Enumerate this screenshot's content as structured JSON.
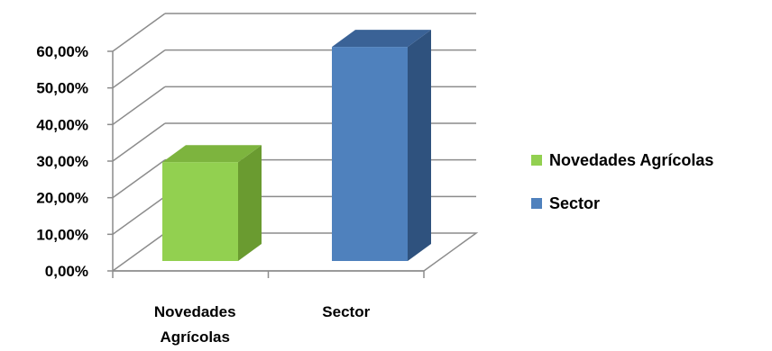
{
  "chart_data": {
    "type": "bar",
    "title": "",
    "xlabel": "",
    "ylabel": "",
    "categories": [
      "Novedades Agrícolas",
      "Sector"
    ],
    "category_label_lines": [
      [
        "Novedades",
        "Agrícolas"
      ],
      [
        "Sector"
      ]
    ],
    "values": [
      0.27,
      0.585
    ],
    "ylim": [
      0,
      0.6
    ],
    "yticks": [
      0,
      0.1,
      0.2,
      0.3,
      0.4,
      0.5,
      0.6
    ],
    "ytick_labels": [
      "0,00%",
      "10,00%",
      "20,00%",
      "30,00%",
      "40,00%",
      "50,00%",
      "60,00%"
    ],
    "grid": true,
    "three_d": true,
    "legend_position": "right",
    "legend": [
      {
        "name": "Novedades Agrícolas",
        "color": "#92D050"
      },
      {
        "name": "Sector",
        "color": "#4F81BD"
      }
    ],
    "colors": {
      "green_front": "#92D050",
      "green_side": "#6A9B30",
      "green_top": "#7DB43E",
      "blue_front": "#4F81BD",
      "blue_side": "#2F527E",
      "blue_top": "#3A6296",
      "grid": "#8C8C8C",
      "axis": "#8C8C8C"
    }
  }
}
